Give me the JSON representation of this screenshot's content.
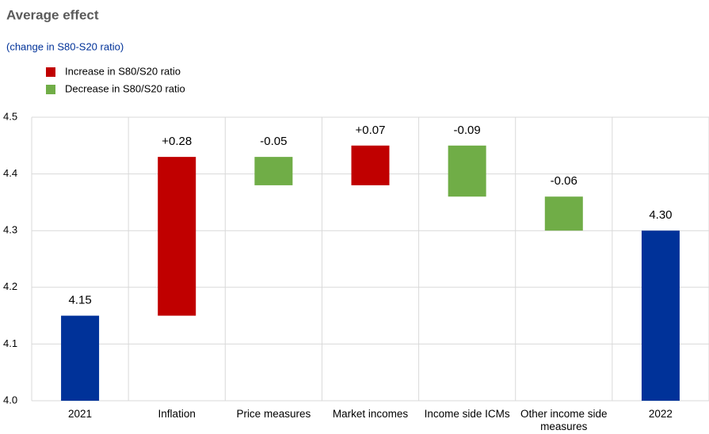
{
  "chart_data": {
    "type": "waterfall",
    "title": "Average effect",
    "subtitle": "(change in S80-S20 ratio)",
    "categories": [
      "2021",
      "Inflation",
      "Price measures",
      "Market incomes",
      "Income side ICMs",
      "Other income side measures",
      "2022"
    ],
    "values": [
      4.15,
      0.28,
      -0.05,
      0.07,
      -0.09,
      -0.06,
      4.3
    ],
    "value_labels": [
      "4.15",
      "+0.28",
      "-0.05",
      "+0.07",
      "-0.09",
      "-0.06",
      "4.30"
    ],
    "measure": [
      "total",
      "relative",
      "relative",
      "relative",
      "relative",
      "relative",
      "total"
    ],
    "total_color": "#003299",
    "legend": [
      {
        "name": "Increase in S80/S20 ratio",
        "color": "#c00000"
      },
      {
        "name": "Decrease in S80/S20 ratio",
        "color": "#70ad47"
      }
    ],
    "ylim": [
      4.0,
      4.5
    ],
    "yticks": [
      {
        "value": 4.0,
        "label": "4.0"
      },
      4.1,
      4.2,
      4.3,
      4.4,
      4.5
    ],
    "grid": true
  }
}
